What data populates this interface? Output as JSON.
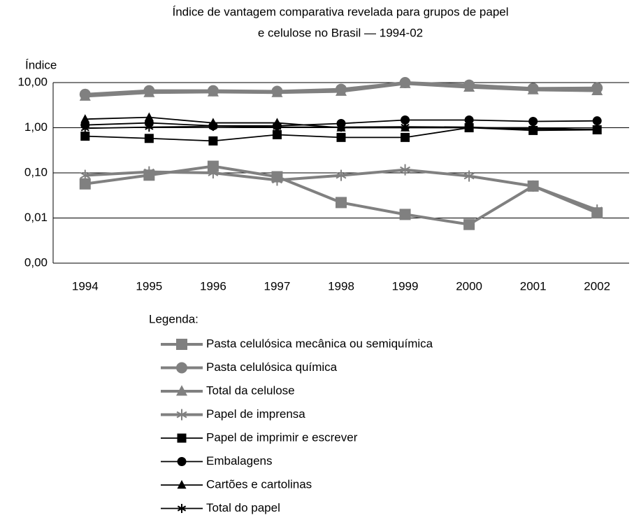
{
  "chart_data": {
    "type": "line",
    "title": [
      "Índice de vantagem comparativa revelada para grupos de papel",
      "e celulose no Brasil  — 1994-02"
    ],
    "y_label": "Índice",
    "legend_title": "Legenda:",
    "log_scale": true,
    "grid": true,
    "categories": [
      "1994",
      "1995",
      "1996",
      "1997",
      "1998",
      "1999",
      "2000",
      "2001",
      "2002"
    ],
    "ylim": [
      0.001,
      10
    ],
    "yticks": [
      {
        "value": 0.001,
        "label": "0,00"
      },
      {
        "value": 0.01,
        "label": "0,01"
      },
      {
        "value": 0.1,
        "label": "0,10"
      },
      {
        "value": 1,
        "label": "1,00"
      },
      {
        "value": 10,
        "label": "10,00"
      }
    ],
    "series": [
      {
        "name": "Pasta celulósica mecânica ou semiquímica",
        "color": "#808080",
        "marker": "square",
        "values": [
          0.057,
          0.089,
          0.14,
          0.082,
          0.022,
          0.012,
          0.0072,
          0.051,
          0.013
        ]
      },
      {
        "name": "Pasta celulósica química",
        "color": "#808080",
        "marker": "circle",
        "values": [
          5.5,
          6.6,
          6.6,
          6.4,
          7.1,
          10,
          8.8,
          7.4,
          7.6
        ]
      },
      {
        "name": "Total da celulose",
        "color": "#808080",
        "marker": "triangle",
        "values": [
          5.0,
          6.0,
          6.2,
          6.0,
          6.4,
          9.5,
          7.9,
          6.9,
          6.6
        ]
      },
      {
        "name": "Papel de imprensa",
        "color": "#808080",
        "marker": "star",
        "values": [
          0.088,
          0.105,
          0.1,
          0.069,
          0.088,
          0.117,
          0.085,
          0.051,
          0.015
        ]
      },
      {
        "name": "Papel de imprimir e escrever",
        "color": "#000000",
        "marker": "square",
        "values": [
          0.65,
          0.58,
          0.51,
          0.7,
          0.61,
          0.61,
          1.0,
          0.87,
          0.9
        ]
      },
      {
        "name": "Embalagens",
        "color": "#000000",
        "marker": "circle",
        "values": [
          1.15,
          1.28,
          1.1,
          1.1,
          1.24,
          1.48,
          1.48,
          1.38,
          1.42
        ]
      },
      {
        "name": "Cartões e cartolinas",
        "color": "#000000",
        "marker": "triangle",
        "values": [
          1.55,
          1.7,
          1.28,
          1.28,
          1.0,
          1.0,
          1.0,
          1.0,
          0.9
        ]
      },
      {
        "name": "Total do papel",
        "color": "#000000",
        "marker": "star",
        "values": [
          0.97,
          1.03,
          1.07,
          1.03,
          1.03,
          1.05,
          1.03,
          0.93,
          0.93
        ]
      }
    ]
  }
}
